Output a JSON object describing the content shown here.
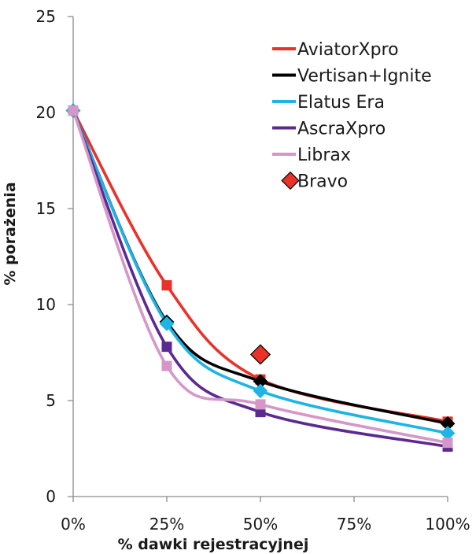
{
  "chart_data": {
    "type": "scatter",
    "xlabel": "% dawki rejestracyjnej",
    "ylabel": "% porażenia",
    "x_ticks": [
      "0%",
      "25%",
      "50%",
      "75%",
      "100%"
    ],
    "y_ticks": [
      "0",
      "5",
      "10",
      "15",
      "20",
      "25"
    ],
    "xlim": [
      0,
      100
    ],
    "ylim": [
      0,
      25
    ],
    "grid": false,
    "legend_position": "top-right",
    "series": [
      {
        "name": "AviatorXpro",
        "color": "#e8322a",
        "marker": "square",
        "trendline": true,
        "x": [
          0,
          25,
          50,
          100
        ],
        "y": [
          20.1,
          11.0,
          6.1,
          3.9
        ]
      },
      {
        "name": "Vertisan+Ignite",
        "color": "#000000",
        "marker": "diamond",
        "trendline": true,
        "x": [
          0,
          25,
          50,
          100
        ],
        "y": [
          20.1,
          9.1,
          6.0,
          3.8
        ]
      },
      {
        "name": "Elatus Era",
        "color": "#1eb4e4",
        "marker": "diamond",
        "trendline": true,
        "x": [
          0,
          25,
          50,
          100
        ],
        "y": [
          20.1,
          9.0,
          5.5,
          3.3
        ]
      },
      {
        "name": "AscraXpro",
        "color": "#5b2a91",
        "marker": "square",
        "trendline": true,
        "x": [
          0,
          25,
          50,
          100
        ],
        "y": [
          20.1,
          7.8,
          4.4,
          2.6
        ]
      },
      {
        "name": "Librax",
        "color": "#d597c8",
        "marker": "square",
        "trendline": true,
        "x": [
          0,
          25,
          50,
          100
        ],
        "y": [
          20.1,
          6.8,
          4.8,
          2.8
        ]
      },
      {
        "name": "Bravo",
        "color": "#e8322a",
        "marker": "diamond-outline",
        "trendline": false,
        "x": [
          50
        ],
        "y": [
          7.4
        ]
      }
    ]
  }
}
